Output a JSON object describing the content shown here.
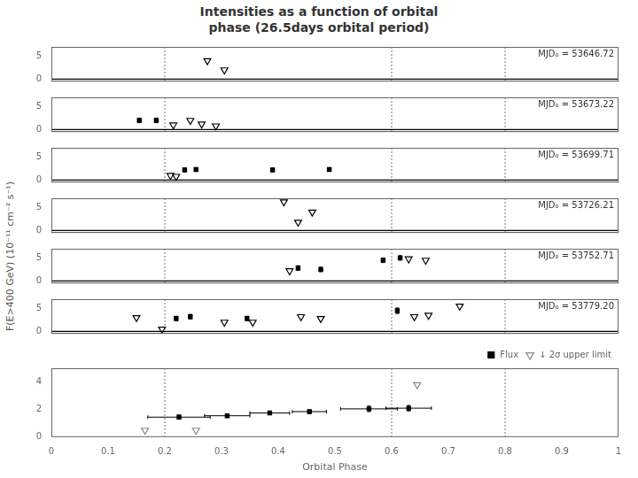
{
  "title": "Intensities as a function of orbital\nphase (26.5days orbital period)",
  "ylabel": "F(E>400 GeV) (10⁻¹¹ cm⁻² s⁻¹)",
  "chart_data": [
    {
      "type": "scatter",
      "annotations": [
        "MJD₀ = 53646.72"
      ],
      "series": [
        {
          "marker": "square",
          "color": "black",
          "x": [],
          "values": [],
          "yerr": []
        },
        {
          "marker": "triangle_down",
          "color": "black",
          "x": [
            0.275,
            0.305
          ],
          "values": [
            4.0,
            2.0
          ]
        }
      ],
      "xlim": [
        0,
        1
      ],
      "xticks": [
        0,
        0.1,
        0.2,
        0.3,
        0.4,
        0.5,
        0.6,
        0.7,
        0.8,
        0.9,
        1
      ],
      "ylim": [
        -0.5,
        7
      ],
      "yticks": [
        0,
        5
      ],
      "grid": false,
      "tick_labels": "y",
      "vlines": [
        0.2,
        0.6,
        0.8
      ],
      "hlines": [
        0
      ]
    },
    {
      "type": "scatter",
      "annotations": [
        "MJD₀ = 53673.22"
      ],
      "series": [
        {
          "marker": "square",
          "color": "black",
          "x": [
            0.155,
            0.185
          ],
          "values": [
            2.0,
            2.0
          ],
          "yerr": [
            0.5,
            0.5
          ]
        },
        {
          "marker": "triangle_down",
          "color": "black",
          "x": [
            0.215,
            0.245,
            0.265,
            0.29
          ],
          "values": [
            1.0,
            2.0,
            1.2,
            0.8
          ]
        }
      ],
      "xlim": [
        0,
        1
      ],
      "xticks": [
        0,
        0.1,
        0.2,
        0.3,
        0.4,
        0.5,
        0.6,
        0.7,
        0.8,
        0.9,
        1
      ],
      "ylim": [
        -0.5,
        7
      ],
      "yticks": [
        0,
        5
      ],
      "grid": false,
      "tick_labels": "y",
      "vlines": [
        0.2,
        0.6,
        0.8
      ],
      "hlines": [
        0
      ]
    },
    {
      "type": "scatter",
      "annotations": [
        "MJD₀ = 53699.71"
      ],
      "series": [
        {
          "marker": "square",
          "color": "black",
          "x": [
            0.235,
            0.255,
            0.39,
            0.49
          ],
          "values": [
            2.2,
            2.3,
            2.2,
            2.3
          ],
          "yerr": [
            0.4,
            0.4,
            0.4,
            0.4
          ]
        },
        {
          "marker": "triangle_down",
          "color": "black",
          "x": [
            0.21,
            0.22
          ],
          "values": [
            1.0,
            0.8
          ]
        }
      ],
      "xlim": [
        0,
        1
      ],
      "xticks": [
        0,
        0.1,
        0.2,
        0.3,
        0.4,
        0.5,
        0.6,
        0.7,
        0.8,
        0.9,
        1
      ],
      "ylim": [
        -0.5,
        7
      ],
      "yticks": [
        0,
        5
      ],
      "grid": false,
      "tick_labels": "y",
      "vlines": [
        0.2,
        0.6,
        0.8
      ],
      "hlines": [
        0
      ]
    },
    {
      "type": "scatter",
      "annotations": [
        "MJD₀ = 53726.21"
      ],
      "series": [
        {
          "marker": "square",
          "color": "black",
          "x": [],
          "values": [],
          "yerr": []
        },
        {
          "marker": "triangle_down",
          "color": "black",
          "x": [
            0.41,
            0.46,
            0.435
          ],
          "values": [
            6.2,
            4.0,
            1.8
          ]
        }
      ],
      "xlim": [
        0,
        1
      ],
      "xticks": [
        0,
        0.1,
        0.2,
        0.3,
        0.4,
        0.5,
        0.6,
        0.7,
        0.8,
        0.9,
        1
      ],
      "ylim": [
        -0.5,
        7
      ],
      "yticks": [
        0,
        5
      ],
      "grid": false,
      "tick_labels": "y",
      "vlines": [
        0.2,
        0.6,
        0.8
      ],
      "hlines": [
        0
      ]
    },
    {
      "type": "scatter",
      "annotations": [
        "MJD₀ = 53752.71"
      ],
      "series": [
        {
          "marker": "square",
          "color": "black",
          "x": [
            0.435,
            0.475,
            0.585,
            0.615
          ],
          "values": [
            2.8,
            2.5,
            4.5,
            5.0
          ],
          "yerr": [
            0.5,
            0.5,
            0.5,
            0.5
          ]
        },
        {
          "marker": "triangle_down",
          "color": "black",
          "x": [
            0.42,
            0.63,
            0.66
          ],
          "values": [
            2.2,
            4.8,
            4.5
          ]
        }
      ],
      "xlim": [
        0,
        1
      ],
      "xticks": [
        0,
        0.1,
        0.2,
        0.3,
        0.4,
        0.5,
        0.6,
        0.7,
        0.8,
        0.9,
        1
      ],
      "ylim": [
        -0.5,
        7
      ],
      "yticks": [
        0,
        5
      ],
      "grid": false,
      "tick_labels": "y",
      "vlines": [
        0.2,
        0.6,
        0.8
      ],
      "hlines": [
        0
      ]
    },
    {
      "type": "scatter",
      "annotations": [
        "MJD₀ = 53779.20"
      ],
      "series": [
        {
          "marker": "square",
          "color": "black",
          "x": [
            0.22,
            0.245,
            0.345,
            0.61
          ],
          "values": [
            2.8,
            3.2,
            2.8,
            4.5
          ],
          "yerr": [
            0.5,
            0.5,
            0.5,
            0.6
          ]
        },
        {
          "marker": "triangle_down",
          "color": "black",
          "x": [
            0.15,
            0.195,
            0.305,
            0.355,
            0.44,
            0.475,
            0.64,
            0.665,
            0.72
          ],
          "values": [
            3.0,
            0.5,
            2.0,
            2.0,
            3.2,
            2.8,
            3.2,
            3.5,
            5.5
          ]
        }
      ],
      "xlim": [
        0,
        1
      ],
      "xticks": [
        0,
        0.1,
        0.2,
        0.3,
        0.4,
        0.5,
        0.6,
        0.7,
        0.8,
        0.9,
        1
      ],
      "ylim": [
        -0.5,
        7
      ],
      "yticks": [
        0,
        5
      ],
      "grid": false,
      "tick_labels": "y",
      "vlines": [
        0.2,
        0.6,
        0.8
      ],
      "hlines": [
        0
      ]
    },
    {
      "type": "scatter",
      "xlabel": "Orbital Phase",
      "series": [
        {
          "name": "Flux",
          "marker": "square",
          "color": "black",
          "x": [
            0.225,
            0.31,
            0.385,
            0.455,
            0.56,
            0.63
          ],
          "values": [
            1.45,
            1.55,
            1.75,
            1.85,
            2.05,
            2.1
          ],
          "xerr": [
            0.055,
            0.04,
            0.035,
            0.03,
            0.05,
            0.04
          ],
          "yerr": [
            0.15,
            0.12,
            0.12,
            0.12,
            0.2,
            0.2
          ]
        },
        {
          "name": "↓ 2σ upper limit",
          "marker": "triangle_down",
          "color": "#888888",
          "x": [
            0.165,
            0.255,
            0.645
          ],
          "values": [
            0.5,
            0.5,
            3.8
          ]
        }
      ],
      "xlim": [
        0,
        1
      ],
      "xticks": [
        0,
        0.1,
        0.2,
        0.3,
        0.4,
        0.5,
        0.6,
        0.7,
        0.8,
        0.9,
        1
      ],
      "ylim": [
        0,
        5
      ],
      "yticks": [
        0,
        2,
        4
      ],
      "grid": false,
      "legend": "upper right",
      "vlines": [
        0.2,
        0.6,
        0.8
      ]
    }
  ]
}
